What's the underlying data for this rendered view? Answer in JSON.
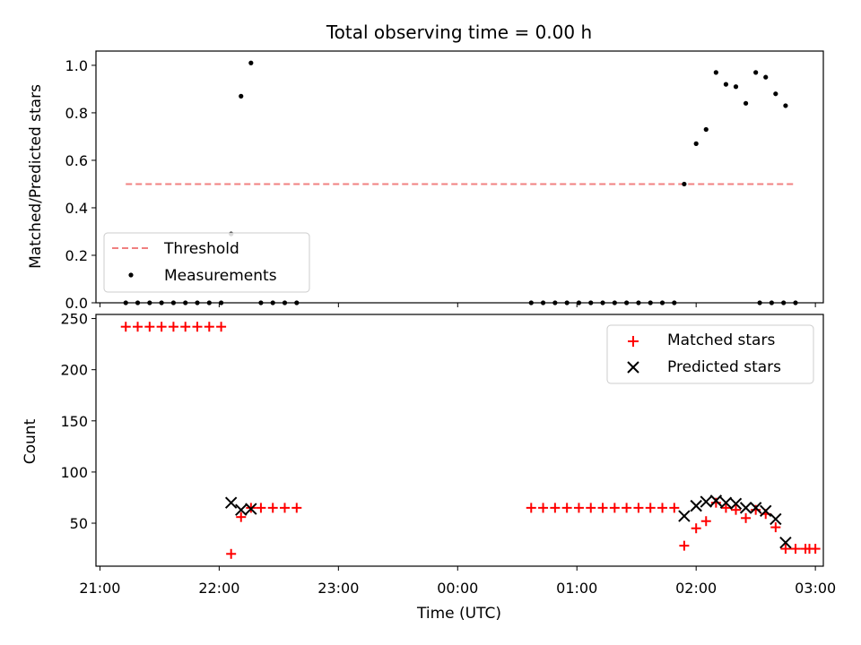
{
  "chart_data": [
    {
      "type": "scatter",
      "title": "Total observing time = 0.00 h",
      "xlabel": "",
      "ylabel": "Matched/Predicted stars",
      "xlim": [
        "20:58",
        "03:04"
      ],
      "ylim": [
        0,
        1.06
      ],
      "yticks": [
        "0.0",
        "0.2",
        "0.4",
        "0.6",
        "0.8",
        "1.0"
      ],
      "legend": {
        "location": "lower-left",
        "entries": [
          "Threshold",
          "Measurements"
        ]
      },
      "threshold": {
        "name": "Threshold",
        "y": 0.5,
        "x_start": "21:13",
        "x_end": "02:50",
        "color": "#f08080"
      },
      "series": [
        {
          "name": "Measurements",
          "color": "#000000",
          "points": [
            [
              "21:13",
              0
            ],
            [
              "21:19",
              0
            ],
            [
              "21:25",
              0
            ],
            [
              "21:31",
              0
            ],
            [
              "21:37",
              0
            ],
            [
              "21:43",
              0
            ],
            [
              "21:49",
              0
            ],
            [
              "21:55",
              0
            ],
            [
              "22:01",
              0
            ],
            [
              "22:06",
              0.29
            ],
            [
              "22:11",
              0.87
            ],
            [
              "22:16",
              1.01
            ],
            [
              "22:21",
              0
            ],
            [
              "22:27",
              0
            ],
            [
              "22:33",
              0
            ],
            [
              "22:39",
              0
            ],
            [
              "00:37",
              0
            ],
            [
              "00:43",
              0
            ],
            [
              "00:49",
              0
            ],
            [
              "00:55",
              0
            ],
            [
              "01:01",
              0
            ],
            [
              "01:07",
              0
            ],
            [
              "01:13",
              0
            ],
            [
              "01:19",
              0
            ],
            [
              "01:25",
              0
            ],
            [
              "01:31",
              0
            ],
            [
              "01:37",
              0
            ],
            [
              "01:43",
              0
            ],
            [
              "01:49",
              0
            ],
            [
              "01:54",
              0.5
            ],
            [
              "02:00",
              0.67
            ],
            [
              "02:05",
              0.73
            ],
            [
              "02:10",
              0.97
            ],
            [
              "02:15",
              0.92
            ],
            [
              "02:20",
              0.91
            ],
            [
              "02:25",
              0.84
            ],
            [
              "02:30",
              0.97
            ],
            [
              "02:35",
              0.95
            ],
            [
              "02:40",
              0.88
            ],
            [
              "02:45",
              0.83
            ],
            [
              "02:32",
              0
            ],
            [
              "02:38",
              0
            ],
            [
              "02:44",
              0
            ],
            [
              "02:50",
              0
            ]
          ]
        }
      ]
    },
    {
      "type": "scatter",
      "title": "",
      "xlabel": "Time (UTC)",
      "ylabel": "Count",
      "xlim": [
        "20:58",
        "03:04"
      ],
      "ylim": [
        8,
        254
      ],
      "yticks": [
        "50",
        "100",
        "150",
        "200",
        "250"
      ],
      "xticks": [
        "21:00",
        "22:00",
        "23:00",
        "00:00",
        "01:00",
        "02:00",
        "03:00"
      ],
      "legend": {
        "location": "top-right",
        "entries": [
          "Matched stars",
          "Predicted stars"
        ]
      },
      "series": [
        {
          "name": "Matched stars",
          "marker": "plus",
          "color": "#ff0000",
          "points": [
            [
              "21:13",
              242
            ],
            [
              "21:19",
              242
            ],
            [
              "21:25",
              242
            ],
            [
              "21:31",
              242
            ],
            [
              "21:37",
              242
            ],
            [
              "21:43",
              242
            ],
            [
              "21:49",
              242
            ],
            [
              "21:55",
              242
            ],
            [
              "22:01",
              242
            ],
            [
              "22:06",
              20
            ],
            [
              "22:11",
              56
            ],
            [
              "22:16",
              65
            ],
            [
              "22:21",
              65
            ],
            [
              "22:27",
              65
            ],
            [
              "22:33",
              65
            ],
            [
              "22:39",
              65
            ],
            [
              "00:37",
              65
            ],
            [
              "00:43",
              65
            ],
            [
              "00:49",
              65
            ],
            [
              "00:55",
              65
            ],
            [
              "01:01",
              65
            ],
            [
              "01:07",
              65
            ],
            [
              "01:13",
              65
            ],
            [
              "01:19",
              65
            ],
            [
              "01:25",
              65
            ],
            [
              "01:31",
              65
            ],
            [
              "01:37",
              65
            ],
            [
              "01:43",
              65
            ],
            [
              "01:49",
              65
            ],
            [
              "01:54",
              28
            ],
            [
              "02:00",
              45
            ],
            [
              "02:05",
              52
            ],
            [
              "02:10",
              70
            ],
            [
              "02:15",
              65
            ],
            [
              "02:20",
              63
            ],
            [
              "02:25",
              55
            ],
            [
              "02:30",
              63
            ],
            [
              "02:35",
              59
            ],
            [
              "02:40",
              46
            ],
            [
              "02:45",
              25
            ],
            [
              "02:50",
              25
            ],
            [
              "02:55",
              25
            ],
            [
              "03:00",
              25
            ],
            [
              "02:57",
              25
            ]
          ]
        },
        {
          "name": "Predicted stars",
          "marker": "x",
          "color": "#000000",
          "points": [
            [
              "22:06",
              70
            ],
            [
              "22:11",
              63
            ],
            [
              "22:16",
              64
            ],
            [
              "01:54",
              57
            ],
            [
              "02:00",
              67
            ],
            [
              "02:05",
              71
            ],
            [
              "02:10",
              72
            ],
            [
              "02:15",
              70
            ],
            [
              "02:20",
              69
            ],
            [
              "02:25",
              65
            ],
            [
              "02:30",
              65
            ],
            [
              "02:35",
              62
            ],
            [
              "02:40",
              54
            ],
            [
              "02:45",
              31
            ]
          ]
        }
      ]
    }
  ]
}
